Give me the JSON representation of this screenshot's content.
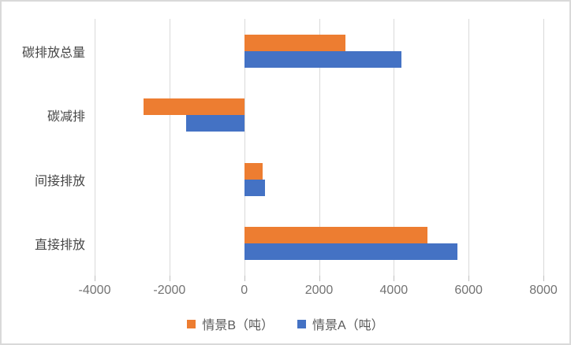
{
  "chart_data": {
    "type": "bar",
    "orientation": "horizontal",
    "title": "",
    "categories_order": "top-to-bottom",
    "categories": [
      "碳排放总量",
      "碳减排",
      "间接排放",
      "直接排放"
    ],
    "series": [
      {
        "key": "scenario-b",
        "name": "情景B（吨）",
        "color": "#ED7D31",
        "values": [
          2700,
          -2700,
          500,
          4900
        ]
      },
      {
        "key": "scenario-a",
        "name": "情景A（吨）",
        "color": "#4472C4",
        "values": [
          4200,
          -1550,
          550,
          5700
        ]
      }
    ],
    "x_axis": {
      "min": -4000,
      "max": 8000,
      "tick_step": 2000,
      "ticks": [
        -4000,
        -2000,
        0,
        2000,
        4000,
        6000,
        8000
      ],
      "tick_labels": [
        "-4000",
        "-2000",
        "0",
        "2000",
        "4000",
        "6000",
        "8000"
      ]
    },
    "grid": true,
    "legend_position": "bottom",
    "style": {
      "gridline_color": "#D9D9D9",
      "tick_mark_color": "#BFBFBF",
      "tick_text_color": "#737373",
      "category_text_color": "#474747",
      "legend_text_color": "#595959",
      "background": "#FFFFFF",
      "border_color": "#D9D9D9"
    }
  }
}
